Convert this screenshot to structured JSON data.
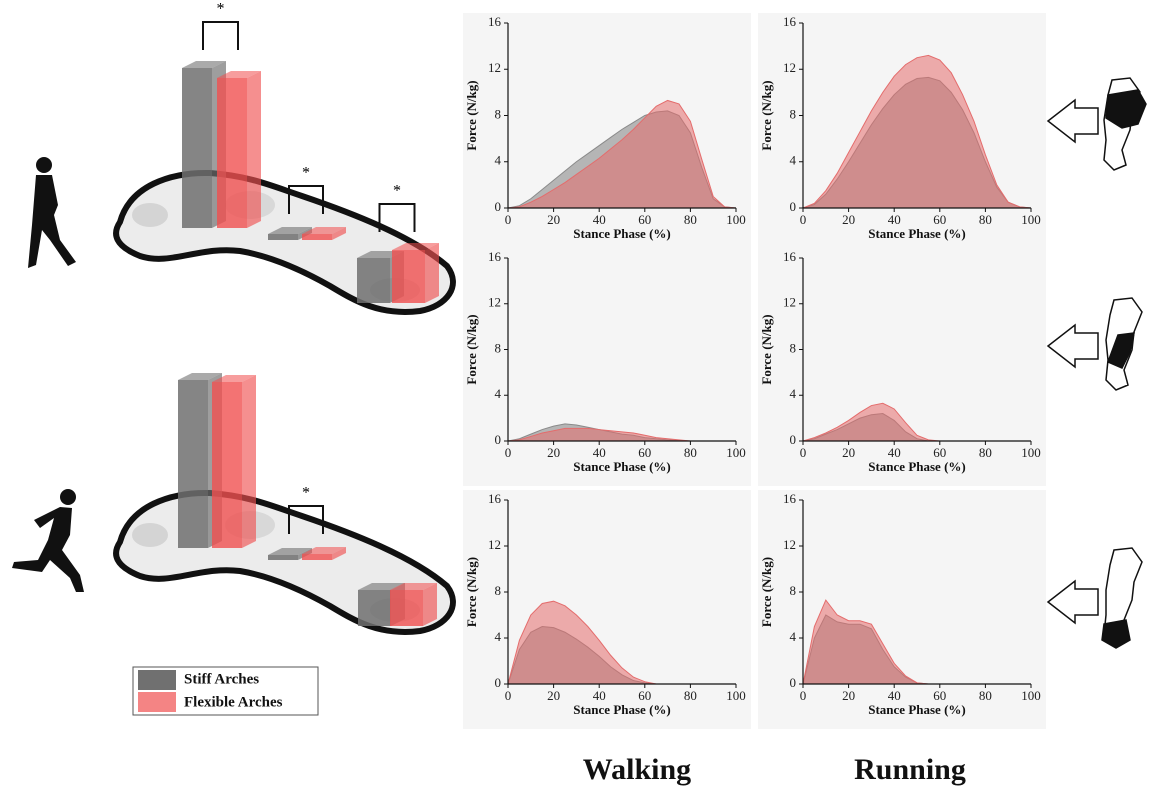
{
  "chart_data": [
    {
      "type": "area",
      "xlabel": "Stance Phase (%)",
      "ylabel": "Force (N/kg)",
      "xlim": [
        0,
        100
      ],
      "ylim": [
        0,
        16
      ],
      "xticks": [
        0,
        20,
        40,
        60,
        80,
        100
      ],
      "yticks": [
        0,
        4,
        8,
        12,
        16
      ],
      "x": [
        0,
        5,
        10,
        15,
        20,
        25,
        30,
        35,
        40,
        45,
        50,
        55,
        60,
        65,
        70,
        75,
        80,
        85,
        90,
        95,
        100
      ],
      "series": [
        {
          "color": "#8a8a8a",
          "values": [
            0,
            0.2,
            0.8,
            1.6,
            2.4,
            3.2,
            4.0,
            4.7,
            5.4,
            6.1,
            6.8,
            7.4,
            8.0,
            8.3,
            8.4,
            8.0,
            6.5,
            3.5,
            0.8,
            0.1,
            0
          ]
        },
        {
          "color": "#e46c6c",
          "values": [
            0,
            0.1,
            0.5,
            1.0,
            1.6,
            2.2,
            2.9,
            3.6,
            4.3,
            5.1,
            5.9,
            6.8,
            7.8,
            8.8,
            9.3,
            9.0,
            7.5,
            4.2,
            1.0,
            0.1,
            0
          ]
        }
      ]
    },
    {
      "type": "area",
      "xlabel": "Stance Phase (%)",
      "ylabel": "Force (N/kg)",
      "xlim": [
        0,
        100
      ],
      "ylim": [
        0,
        16
      ],
      "xticks": [
        0,
        20,
        40,
        60,
        80,
        100
      ],
      "yticks": [
        0,
        4,
        8,
        12,
        16
      ],
      "x": [
        0,
        5,
        10,
        15,
        20,
        25,
        30,
        35,
        40,
        45,
        50,
        55,
        60,
        65,
        70,
        75,
        80,
        85,
        90,
        95,
        100
      ],
      "series": [
        {
          "color": "#8a8a8a",
          "values": [
            0,
            0.3,
            1.2,
            2.5,
            4.0,
            5.6,
            7.2,
            8.6,
            9.8,
            10.7,
            11.2,
            11.3,
            11.0,
            10.0,
            8.5,
            6.5,
            4.0,
            1.8,
            0.5,
            0.1,
            0
          ]
        },
        {
          "color": "#e46c6c",
          "values": [
            0,
            0.4,
            1.5,
            3.0,
            4.8,
            6.6,
            8.4,
            10.0,
            11.4,
            12.4,
            13.0,
            13.2,
            12.8,
            11.7,
            9.8,
            7.5,
            4.6,
            2.0,
            0.5,
            0.1,
            0
          ]
        }
      ]
    },
    {
      "type": "area",
      "xlabel": "Stance Phase (%)",
      "ylabel": "Force (N/kg)",
      "xlim": [
        0,
        100
      ],
      "ylim": [
        0,
        16
      ],
      "xticks": [
        0,
        20,
        40,
        60,
        80,
        100
      ],
      "yticks": [
        0,
        4,
        8,
        12,
        16
      ],
      "x": [
        0,
        5,
        10,
        15,
        20,
        25,
        30,
        35,
        40,
        45,
        50,
        55,
        60,
        65,
        70,
        75,
        80,
        85,
        90,
        95,
        100
      ],
      "series": [
        {
          "color": "#8a8a8a",
          "values": [
            0,
            0.2,
            0.6,
            1.0,
            1.3,
            1.5,
            1.4,
            1.2,
            1.0,
            0.8,
            0.6,
            0.5,
            0.3,
            0.2,
            0.1,
            0.05,
            0,
            0,
            0,
            0,
            0
          ]
        },
        {
          "color": "#e46c6c",
          "values": [
            0,
            0.1,
            0.4,
            0.7,
            0.9,
            1.1,
            1.1,
            1.1,
            1.0,
            0.9,
            0.8,
            0.7,
            0.5,
            0.3,
            0.2,
            0.1,
            0,
            0,
            0,
            0,
            0
          ]
        }
      ]
    },
    {
      "type": "area",
      "xlabel": "Stance Phase (%)",
      "ylabel": "Force (N/kg)",
      "xlim": [
        0,
        100
      ],
      "ylim": [
        0,
        16
      ],
      "xticks": [
        0,
        20,
        40,
        60,
        80,
        100
      ],
      "yticks": [
        0,
        4,
        8,
        12,
        16
      ],
      "x": [
        0,
        5,
        10,
        15,
        20,
        25,
        30,
        35,
        40,
        45,
        50,
        55,
        60,
        65,
        70,
        75,
        80,
        85,
        90,
        95,
        100
      ],
      "series": [
        {
          "color": "#8a8a8a",
          "values": [
            0,
            0.2,
            0.6,
            1.0,
            1.5,
            2.0,
            2.3,
            2.4,
            1.8,
            0.8,
            0.2,
            0,
            0,
            0,
            0,
            0,
            0,
            0,
            0,
            0,
            0
          ]
        },
        {
          "color": "#e46c6c",
          "values": [
            0,
            0.3,
            0.7,
            1.2,
            1.8,
            2.5,
            3.1,
            3.3,
            2.8,
            1.6,
            0.5,
            0.1,
            0,
            0,
            0,
            0,
            0,
            0,
            0,
            0,
            0
          ]
        }
      ]
    },
    {
      "type": "area",
      "xlabel": "Stance Phase (%)",
      "ylabel": "Force (N/kg)",
      "xlim": [
        0,
        100
      ],
      "ylim": [
        0,
        16
      ],
      "xticks": [
        0,
        20,
        40,
        60,
        80,
        100
      ],
      "yticks": [
        0,
        4,
        8,
        12,
        16
      ],
      "x": [
        0,
        5,
        10,
        15,
        20,
        25,
        30,
        35,
        40,
        45,
        50,
        55,
        60,
        65,
        70,
        75,
        80,
        85,
        90,
        95,
        100
      ],
      "series": [
        {
          "color": "#8a8a8a",
          "values": [
            0,
            3.0,
            4.5,
            5.0,
            4.9,
            4.5,
            3.9,
            3.2,
            2.4,
            1.5,
            0.8,
            0.3,
            0.1,
            0,
            0,
            0,
            0,
            0,
            0,
            0,
            0
          ]
        },
        {
          "color": "#e46c6c",
          "values": [
            0,
            3.8,
            6.0,
            7.0,
            7.2,
            6.8,
            6.0,
            5.0,
            3.8,
            2.5,
            1.4,
            0.6,
            0.2,
            0,
            0,
            0,
            0,
            0,
            0,
            0,
            0
          ]
        }
      ]
    },
    {
      "type": "area",
      "xlabel": "Stance Phase (%)",
      "ylabel": "Force (N/kg)",
      "xlim": [
        0,
        100
      ],
      "ylim": [
        0,
        16
      ],
      "xticks": [
        0,
        20,
        40,
        60,
        80,
        100
      ],
      "yticks": [
        0,
        4,
        8,
        12,
        16
      ],
      "x": [
        0,
        5,
        10,
        15,
        20,
        25,
        30,
        35,
        40,
        45,
        50,
        55,
        60,
        65,
        70,
        75,
        80,
        85,
        90,
        95,
        100
      ],
      "series": [
        {
          "color": "#8a8a8a",
          "values": [
            0,
            4.0,
            6.0,
            5.4,
            5.2,
            5.2,
            4.8,
            3.0,
            1.5,
            0.6,
            0.1,
            0,
            0,
            0,
            0,
            0,
            0,
            0,
            0,
            0,
            0
          ]
        },
        {
          "color": "#e46c6c",
          "values": [
            0,
            5.0,
            7.3,
            6.0,
            5.5,
            5.5,
            5.2,
            3.5,
            1.8,
            0.7,
            0.1,
            0,
            0,
            0,
            0,
            0,
            0,
            0,
            0,
            0,
            0
          ]
        }
      ]
    },
    {
      "type": "bar3d",
      "categories": [
        null,
        null,
        null
      ],
      "ylim": [
        0,
        200
      ],
      "annotations": [
        "*",
        "*",
        "*"
      ],
      "series": [
        {
          "name": "Stiff Arches",
          "color": "#707070",
          "values": [
            160,
            6,
            45
          ]
        },
        {
          "name": "Flexible Arches",
          "color": "#f05050",
          "values": [
            150,
            6,
            53
          ]
        }
      ]
    },
    {
      "type": "bar3d",
      "categories": [
        null,
        null,
        null
      ],
      "ylim": [
        0,
        200
      ],
      "annotations": [
        null,
        "*",
        null
      ],
      "series": [
        {
          "name": "Stiff Arches",
          "color": "#707070",
          "values": [
            168,
            5,
            36
          ]
        },
        {
          "name": "Flexible Arches",
          "color": "#f05050",
          "values": [
            166,
            6,
            36
          ]
        }
      ]
    }
  ],
  "column_labels": [
    "Walking",
    "Running"
  ]
}
